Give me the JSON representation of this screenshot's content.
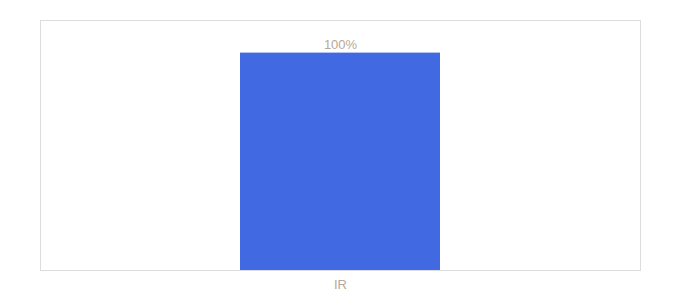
{
  "chart_data": {
    "type": "bar",
    "categories": [
      "IR"
    ],
    "values": [
      100
    ],
    "value_labels": [
      "100%"
    ],
    "data_labels": true,
    "color": "#4169e1",
    "ylim": [
      0,
      115
    ],
    "tick_labels": "x"
  }
}
